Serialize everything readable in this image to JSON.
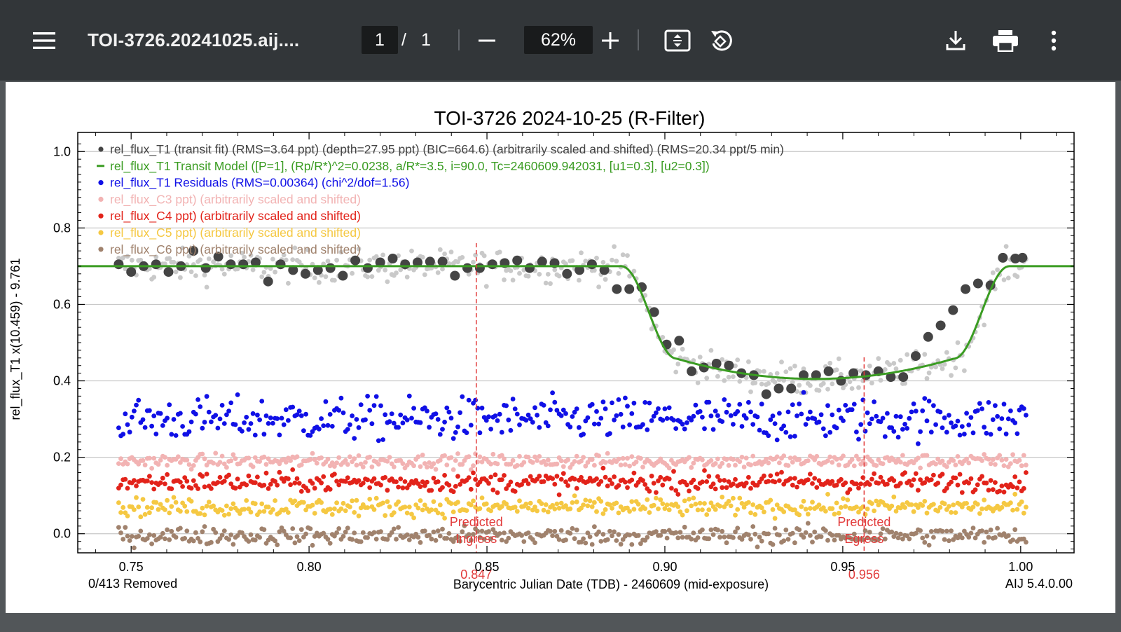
{
  "toolbar": {
    "menu_icon": "hamburger-menu-icon",
    "title": "TOI-3726.20241025.aij....",
    "current_page": "1",
    "page_separator": "/",
    "total_pages": "1",
    "zoom_out_icon": "minus-icon",
    "zoom_level": "62%",
    "zoom_in_icon": "plus-icon",
    "fit_page_icon": "fit-to-page-icon",
    "rotate_icon": "rotate-icon",
    "download_icon": "download-icon",
    "print_icon": "print-icon",
    "more_icon": "more-vertical-icon",
    "background_color": "#323639",
    "viewer_background": "#525659"
  },
  "chart_data": {
    "type": "scatter",
    "title": "TOI-3726 2024-10-25 (R-Filter)",
    "xlabel": "Barycentric Julian Date (TDB) - 2460609 (mid-exposure)",
    "ylabel": "rel_flux_T1 x(10.459) - 9.761",
    "xlim": [
      0.735,
      1.015
    ],
    "ylim": [
      -0.05,
      1.05
    ],
    "x_ticks": [
      "0.75",
      "0.80",
      "0.85",
      "0.90",
      "0.95",
      "1.00"
    ],
    "y_ticks": [
      "0.0",
      "0.2",
      "0.4",
      "0.6",
      "0.8",
      "1.0"
    ],
    "grid": "horizontal",
    "legend_position": "top-left inside",
    "bottom_left_note": "0/413 Removed",
    "bottom_right_note": "AIJ 5.4.0.00",
    "legend": [
      {
        "marker": "dot",
        "color": "#444444",
        "label": "rel_flux_T1 (transit fit) (RMS=3.64 ppt) (depth=27.95 ppt) (BIC=664.6) (arbitrarily scaled and shifted) (RMS=20.34 ppt/5 min)"
      },
      {
        "marker": "line",
        "color": "#3a9c22",
        "label": "rel_flux_T1 Transit Model ([P=1], (Rp/R*)^2=0.0238, a/R*=3.5, i=90.0, Tc=2460609.942031, [u1=0.3], [u2=0.3])"
      },
      {
        "marker": "dot",
        "color": "#1010e6",
        "label": "rel_flux_T1 Residuals (RMS=0.00364) (chi^2/dof=1.56)"
      },
      {
        "marker": "dot",
        "color": "#f2b3b3",
        "label": "rel_flux_C3 ppt) (arbitrarily scaled and shifted)"
      },
      {
        "marker": "dot",
        "color": "#e2231a",
        "label": "rel_flux_C4 ppt) (arbitrarily scaled and shifted)"
      },
      {
        "marker": "dot",
        "color": "#f5c842",
        "label": "rel_flux_C5 ppt) (arbitrarily scaled and shifted)"
      },
      {
        "marker": "dot",
        "color": "#a0826d",
        "label": "rel_flux_C6 ppt) (arbitrarily scaled and shifted)"
      }
    ],
    "markers": [
      {
        "label_lines": [
          "Predicted",
          "Ingress"
        ],
        "x": 0.847,
        "value_label": "0.847",
        "color": "#e23b3b"
      },
      {
        "label_lines": [
          "Predicted",
          "Egress"
        ],
        "x": 0.956,
        "value_label": "0.956",
        "color": "#e23b3b"
      }
    ],
    "transit_model": {
      "t1": 0.8878,
      "t2": 0.9033,
      "t3": 0.9812,
      "t4": 0.9968,
      "baseline": 0.7,
      "bottom": 0.405,
      "color": "#3a9c22"
    },
    "binned_points": {
      "name": "rel_flux_T1",
      "color": "#444444",
      "x": [
        0.7465,
        0.75,
        0.7535,
        0.757,
        0.7605,
        0.764,
        0.7675,
        0.771,
        0.7745,
        0.778,
        0.7815,
        0.785,
        0.7885,
        0.792,
        0.7955,
        0.799,
        0.8025,
        0.806,
        0.8095,
        0.813,
        0.8165,
        0.82,
        0.8235,
        0.827,
        0.8305,
        0.834,
        0.8375,
        0.841,
        0.8445,
        0.848,
        0.8515,
        0.855,
        0.8585,
        0.862,
        0.8655,
        0.869,
        0.8725,
        0.876,
        0.8795,
        0.883,
        0.8865,
        0.89,
        0.8935,
        0.897,
        0.9005,
        0.904,
        0.9075,
        0.911,
        0.9145,
        0.918,
        0.9215,
        0.925,
        0.9285,
        0.932,
        0.9355,
        0.939,
        0.9425,
        0.946,
        0.9495,
        0.953,
        0.9565,
        0.96,
        0.9635,
        0.967,
        0.9705,
        0.974,
        0.9775,
        0.981,
        0.9845,
        0.988,
        0.9915,
        0.995,
        0.9985,
        1.0005
      ],
      "y": [
        0.705,
        0.685,
        0.7,
        0.705,
        0.685,
        0.7,
        0.74,
        0.695,
        0.725,
        0.705,
        0.705,
        0.71,
        0.66,
        0.705,
        0.69,
        0.68,
        0.69,
        0.695,
        0.675,
        0.715,
        0.695,
        0.71,
        0.72,
        0.705,
        0.71,
        0.712,
        0.712,
        0.675,
        0.695,
        0.695,
        0.705,
        0.708,
        0.715,
        0.695,
        0.712,
        0.708,
        0.68,
        0.69,
        0.705,
        0.69,
        0.64,
        0.64,
        0.645,
        0.58,
        0.495,
        0.505,
        0.425,
        0.435,
        0.445,
        0.44,
        0.42,
        0.415,
        0.365,
        0.38,
        0.38,
        0.415,
        0.415,
        0.425,
        0.4,
        0.42,
        0.415,
        0.425,
        0.41,
        0.41,
        0.465,
        0.515,
        0.545,
        0.585,
        0.64,
        0.655,
        0.65,
        0.722,
        0.72,
        0.722
      ]
    },
    "unbinned_series": {
      "name": "rel_flux_T1 unbinned",
      "color": "#c9c9c9",
      "count": 413,
      "x_range": [
        0.7465,
        1.0015
      ],
      "scatter_sd": 0.03
    },
    "residuals": {
      "name": "rel_flux_T1 Residuals",
      "color": "#1010e6",
      "count": 413,
      "x_range": [
        0.7465,
        1.0015
      ],
      "center": 0.3,
      "scatter_sd": 0.04
    },
    "comparisons": [
      {
        "name": "rel_flux_C3",
        "color": "#f2b3b3",
        "count": 413,
        "x_range": [
          0.7465,
          1.0015
        ],
        "center": 0.19,
        "scatter_sd": 0.013
      },
      {
        "name": "rel_flux_C4",
        "color": "#e2231a",
        "count": 413,
        "x_range": [
          0.7465,
          1.0015
        ],
        "center": 0.135,
        "scatter_sd": 0.018
      },
      {
        "name": "rel_flux_C5",
        "color": "#f5c842",
        "count": 413,
        "x_range": [
          0.7465,
          1.0015
        ],
        "center": 0.07,
        "scatter_sd": 0.017
      },
      {
        "name": "rel_flux_C6",
        "color": "#a0826d",
        "count": 413,
        "x_range": [
          0.7465,
          1.0015
        ],
        "center": -0.005,
        "scatter_sd": 0.017
      }
    ]
  }
}
